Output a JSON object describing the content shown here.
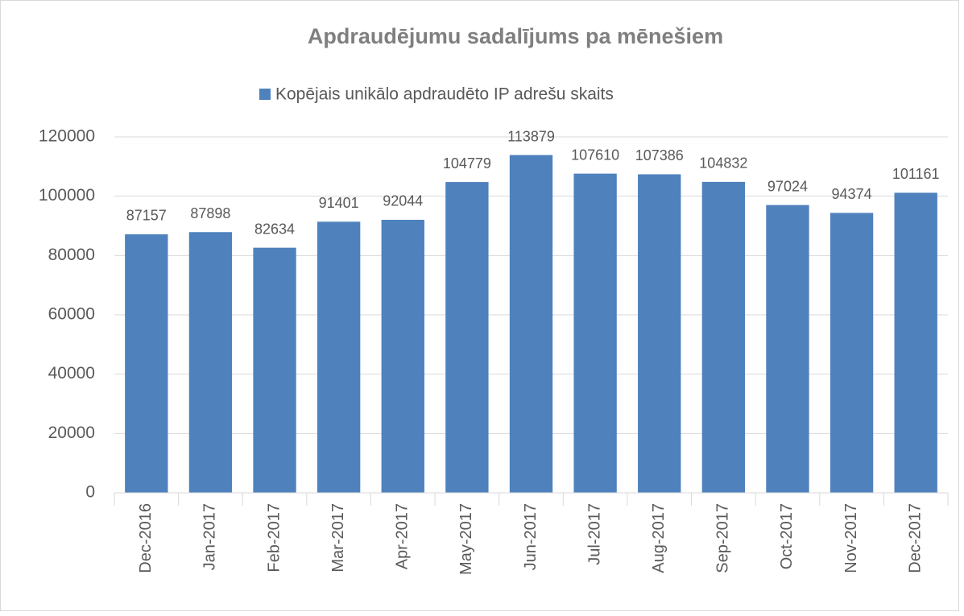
{
  "chart_data": {
    "type": "bar",
    "title": "Apdraudējumu sadalījums pa mēnešiem",
    "categories": [
      "Dec-2016",
      "Jan-2017",
      "Feb-2017",
      "Mar-2017",
      "Apr-2017",
      "May-2017",
      "Jun-2017",
      "Jul-2017",
      "Aug-2017",
      "Sep-2017",
      "Oct-2017",
      "Nov-2017",
      "Dec-2017"
    ],
    "series": [
      {
        "name": "Kopējais unikālo apdraudēto IP adrešu skaits",
        "color": "#4f81bd",
        "values": [
          87157,
          87898,
          82634,
          91401,
          92044,
          104779,
          113879,
          107610,
          107386,
          104832,
          97024,
          94374,
          101161
        ]
      }
    ],
    "ylim": [
      0,
      120000
    ],
    "yticks": [
      0,
      20000,
      40000,
      60000,
      80000,
      100000,
      120000
    ],
    "grid": true,
    "legend": "top"
  }
}
